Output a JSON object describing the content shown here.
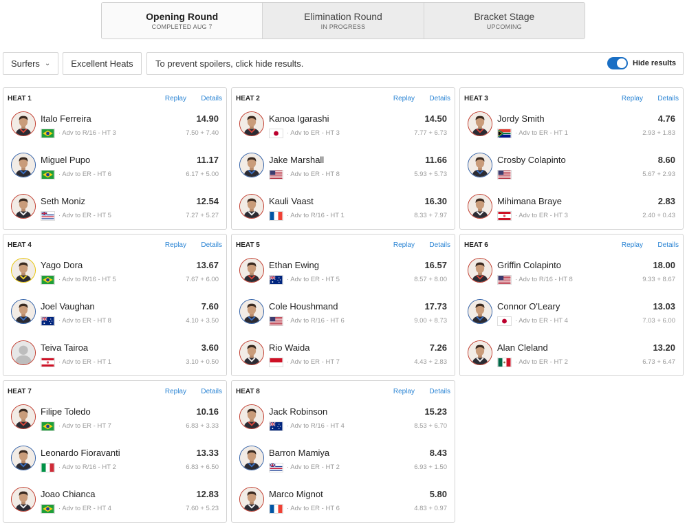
{
  "rounds": [
    {
      "name": "Opening Round",
      "status": "COMPLETED AUG 7"
    },
    {
      "name": "Elimination Round",
      "status": "IN PROGRESS"
    },
    {
      "name": "Bracket Stage",
      "status": "UPCOMING"
    }
  ],
  "filters": {
    "surfers_label": "Surfers",
    "excellent_label": "Excellent Heats",
    "spoiler_text": "To prevent spoilers, click hide results.",
    "hide_label": "Hide results"
  },
  "heat_links": {
    "replay": "Replay",
    "details": "Details"
  },
  "colors": {
    "accent": "#1a6fc4",
    "link": "#2a84d4",
    "jersey_red": "#c0392b",
    "jersey_blue": "#2f5fa7",
    "jersey_yellow": "#e6c300"
  },
  "heats": [
    {
      "title": "HEAT 1",
      "surfers": [
        {
          "name": "Italo Ferreira",
          "adv": "· Adv to R/16 - HT 3",
          "score": "14.90",
          "waves": "7.50 + 7.40",
          "jersey": "red",
          "flag": "BR"
        },
        {
          "name": "Miguel Pupo",
          "adv": "· Adv to ER - HT 6",
          "score": "11.17",
          "waves": "6.17 + 5.00",
          "jersey": "blue",
          "flag": "BR"
        },
        {
          "name": "Seth Moniz",
          "adv": "· Adv to ER - HT 5",
          "score": "12.54",
          "waves": "7.27 + 5.27",
          "jersey": "white",
          "flag": "HI"
        }
      ]
    },
    {
      "title": "HEAT 2",
      "surfers": [
        {
          "name": "Kanoa Igarashi",
          "adv": "· Adv to ER - HT 3",
          "score": "14.50",
          "waves": "7.77 + 6.73",
          "jersey": "red",
          "flag": "JP"
        },
        {
          "name": "Jake Marshall",
          "adv": "· Adv to ER - HT 8",
          "score": "11.66",
          "waves": "5.93 + 5.73",
          "jersey": "blue",
          "flag": "US"
        },
        {
          "name": "Kauli Vaast",
          "adv": "· Adv to R/16 - HT 1",
          "score": "16.30",
          "waves": "8.33 + 7.97",
          "jersey": "white",
          "flag": "FR"
        }
      ]
    },
    {
      "title": "HEAT 3",
      "surfers": [
        {
          "name": "Jordy Smith",
          "adv": "· Adv to ER - HT 1",
          "score": "4.76",
          "waves": "2.93 + 1.83",
          "jersey": "red",
          "flag": "ZA"
        },
        {
          "name": "Crosby Colapinto",
          "adv": "",
          "score": "8.60",
          "waves": "5.67 + 2.93",
          "jersey": "blue",
          "flag": "US"
        },
        {
          "name": "Mihimana Braye",
          "adv": "· Adv to ER - HT 3",
          "score": "2.83",
          "waves": "2.40 + 0.43",
          "jersey": "white",
          "flag": "PF"
        }
      ]
    },
    {
      "title": "HEAT 4",
      "surfers": [
        {
          "name": "Yago Dora",
          "adv": "· Adv to R/16 - HT 5",
          "score": "13.67",
          "waves": "7.67 + 6.00",
          "jersey": "yellow",
          "flag": "BR"
        },
        {
          "name": "Joel Vaughan",
          "adv": "· Adv to ER - HT 8",
          "score": "7.60",
          "waves": "4.10 + 3.50",
          "jersey": "blue",
          "flag": "AU"
        },
        {
          "name": "Teiva Tairoa",
          "adv": "· Adv to ER - HT 1",
          "score": "3.60",
          "waves": "3.10 + 0.50",
          "jersey": "placeholder",
          "flag": "PF"
        }
      ]
    },
    {
      "title": "HEAT 5",
      "surfers": [
        {
          "name": "Ethan Ewing",
          "adv": "· Adv to ER - HT 5",
          "score": "16.57",
          "waves": "8.57 + 8.00",
          "jersey": "red",
          "flag": "AU"
        },
        {
          "name": "Cole Houshmand",
          "adv": "· Adv to R/16 - HT 6",
          "score": "17.73",
          "waves": "9.00 + 8.73",
          "jersey": "blue",
          "flag": "US"
        },
        {
          "name": "Rio Waida",
          "adv": "· Adv to ER - HT 7",
          "score": "7.26",
          "waves": "4.43 + 2.83",
          "jersey": "white",
          "flag": "ID"
        }
      ]
    },
    {
      "title": "HEAT 6",
      "surfers": [
        {
          "name": "Griffin Colapinto",
          "adv": "· Adv to R/16 - HT 8",
          "score": "18.00",
          "waves": "9.33 + 8.67",
          "jersey": "red",
          "flag": "US"
        },
        {
          "name": "Connor O'Leary",
          "adv": "· Adv to ER - HT 4",
          "score": "13.03",
          "waves": "7.03 + 6.00",
          "jersey": "blue",
          "flag": "JP"
        },
        {
          "name": "Alan Cleland",
          "adv": "· Adv to ER - HT 2",
          "score": "13.20",
          "waves": "6.73 + 6.47",
          "jersey": "white",
          "flag": "MX"
        }
      ]
    },
    {
      "title": "HEAT 7",
      "surfers": [
        {
          "name": "Filipe Toledo",
          "adv": "· Adv to ER - HT 7",
          "score": "10.16",
          "waves": "6.83 + 3.33",
          "jersey": "red",
          "flag": "BR"
        },
        {
          "name": "Leonardo Fioravanti",
          "adv": "· Adv to R/16 - HT 2",
          "score": "13.33",
          "waves": "6.83 + 6.50",
          "jersey": "blue",
          "flag": "IT"
        },
        {
          "name": "Joao Chianca",
          "adv": "· Adv to ER - HT 4",
          "score": "12.83",
          "waves": "7.60 + 5.23",
          "jersey": "white",
          "flag": "BR"
        }
      ]
    },
    {
      "title": "HEAT 8",
      "surfers": [
        {
          "name": "Jack Robinson",
          "adv": "· Adv to R/16 - HT 4",
          "score": "15.23",
          "waves": "8.53 + 6.70",
          "jersey": "red",
          "flag": "AU"
        },
        {
          "name": "Barron Mamiya",
          "adv": "· Adv to ER - HT 2",
          "score": "8.43",
          "waves": "6.93 + 1.50",
          "jersey": "blue",
          "flag": "HI"
        },
        {
          "name": "Marco Mignot",
          "adv": "· Adv to ER - HT 6",
          "score": "5.80",
          "waves": "4.83 + 0.97",
          "jersey": "white",
          "flag": "FR"
        }
      ]
    }
  ]
}
